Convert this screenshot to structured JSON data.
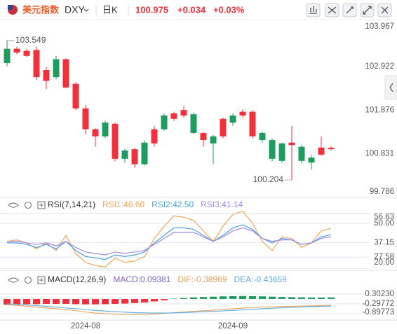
{
  "header": {
    "name": "美元指数",
    "symbol": "DXY",
    "period": "日K",
    "price": 100.975,
    "change": "+0.034",
    "change_pct": "+0.03%"
  },
  "chart_data": [
    {
      "type": "candlestick",
      "categories": [
        null,
        null,
        null,
        null,
        null,
        null,
        null,
        null,
        "2024-08",
        null,
        null,
        null,
        null,
        null,
        null,
        null,
        null,
        null,
        null,
        null,
        null,
        null,
        null,
        "2024-09",
        null,
        null,
        null,
        null,
        null,
        null,
        null,
        null,
        null,
        null
      ],
      "open": [
        103.35,
        103.26,
        103.18,
        102.67,
        102.58,
        103.1,
        102.42,
        101.92,
        101.42,
        101.25,
        101.58,
        100.71,
        100.91,
        100.58,
        101.1,
        101.08,
        101.75,
        101.67,
        101.75,
        101.78,
        101.16,
        101.25,
        101.25,
        101.75,
        101.75,
        101.25,
        101.33,
        101.16,
        101.08,
        101.04,
        101.0,
        100.74,
        100.81,
        100.94
      ],
      "close": [
        103.01,
        103.35,
        103.3,
        103.32,
        102.84,
        102.67,
        103.1,
        102.51,
        101.92,
        101.42,
        101.25,
        101.55,
        100.71,
        100.94,
        100.58,
        101.42,
        101.42,
        101.8,
        101.88,
        101.33,
        101.33,
        101.08,
        101.67,
        101.58,
        101.84,
        101.84,
        101.16,
        100.71,
        100.66,
        101.1,
        100.66,
        100.62,
        100.98,
        100.975
      ],
      "high": [
        103.549,
        103.4,
        103.35,
        103.4,
        102.92,
        103.18,
        103.12,
        102.55,
        102.0,
        101.45,
        101.62,
        101.58,
        100.95,
        100.97,
        101.15,
        101.5,
        101.8,
        101.84,
        101.98,
        101.82,
        101.35,
        101.28,
        101.7,
        101.8,
        101.9,
        101.88,
        101.36,
        101.2,
        101.1,
        101.5,
        101.05,
        100.8,
        101.25,
        101.02
      ],
      "low": [
        102.93,
        103.22,
        103.15,
        102.6,
        102.38,
        102.62,
        102.4,
        101.88,
        101.3,
        101.0,
        101.2,
        100.65,
        100.62,
        100.5,
        100.55,
        101.0,
        101.38,
        101.62,
        101.7,
        101.3,
        101.0,
        100.58,
        101.2,
        101.5,
        101.7,
        101.2,
        101.1,
        100.65,
        100.62,
        100.204,
        100.6,
        100.45,
        100.78,
        100.92
      ],
      "up_color": "#f0303a",
      "down_color": "#1e9b5e",
      "ylim": [
        99.75,
        104.05
      ],
      "yticks": [
        103.967,
        102.922,
        101.876,
        100.831,
        99.786
      ]
    },
    {
      "type": "line",
      "title": "RSI(7,14,21)",
      "series": [
        {
          "name": "RSI1:46.60",
          "color": "#f2a65a",
          "values": [
            38,
            39,
            37,
            33,
            37,
            32,
            42,
            30,
            24,
            22,
            21,
            27,
            24,
            25,
            28,
            40,
            48,
            55,
            54,
            52,
            45,
            38,
            48,
            56,
            58,
            50,
            38,
            32,
            41,
            40,
            34,
            37,
            45,
            46.6
          ]
        },
        {
          "name": "RSI2:42.50",
          "color": "#4aa3df",
          "values": [
            37,
            37,
            36,
            34,
            36,
            33,
            38,
            32,
            28,
            27,
            26,
            29,
            28,
            29,
            31,
            37,
            42,
            47,
            47,
            46,
            42,
            38,
            42,
            47,
            49,
            46,
            40,
            37,
            40,
            39,
            36,
            37,
            41,
            42.5
          ]
        },
        {
          "name": "RSI3:41.14",
          "color": "#a586e6",
          "values": [
            38,
            38,
            37,
            36,
            37,
            35,
            38,
            34,
            31,
            30,
            29,
            31,
            30,
            31,
            32,
            36,
            40,
            44,
            44,
            44,
            41,
            38,
            41,
            45,
            47,
            45,
            40,
            38,
            39,
            39,
            36,
            37,
            40,
            41.14
          ]
        }
      ],
      "ylim": [
        19.3,
        58.8
      ],
      "yticks": [
        56.63,
        {
          "value": 50,
          "label": "50.00"
        },
        37.15,
        27.58,
        {
          "value": 20,
          "label": "20.00"
        }
      ]
    },
    {
      "type": "macd",
      "title": "MACD(12,26,9)",
      "series": [
        {
          "name": "MACD:0.09381",
          "style": "bar",
          "positive_color": "#1e9b5e",
          "negative_color": "#f0303a",
          "color": "#7f64c8",
          "values": [
            -0.35,
            -0.33,
            -0.32,
            -0.32,
            -0.3,
            -0.3,
            -0.3,
            -0.32,
            -0.33,
            -0.33,
            -0.32,
            -0.3,
            -0.28,
            -0.25,
            -0.22,
            -0.15,
            -0.08,
            0.02,
            0.06,
            0.1,
            0.12,
            0.14,
            0.16,
            0.17,
            0.18,
            0.17,
            0.16,
            0.14,
            0.12,
            0.11,
            0.1,
            0.09,
            0.09,
            0.09381
          ]
        },
        {
          "name": "DIF:-0.38969",
          "style": "line",
          "color": "#f0a050",
          "values": [
            -0.35,
            -0.4,
            -0.45,
            -0.5,
            -0.55,
            -0.6,
            -0.65,
            -0.72,
            -0.8,
            -0.86,
            -0.9,
            -0.93,
            -0.95,
            -0.96,
            -0.95,
            -0.92,
            -0.88,
            -0.84,
            -0.8,
            -0.76,
            -0.72,
            -0.69,
            -0.64,
            -0.6,
            -0.56,
            -0.52,
            -0.5,
            -0.48,
            -0.46,
            -0.45,
            -0.44,
            -0.42,
            -0.4,
            -0.38969
          ]
        },
        {
          "name": "DEA:-0.43659",
          "style": "line",
          "color": "#5aaee0",
          "values": [
            -0.3,
            -0.33,
            -0.37,
            -0.41,
            -0.45,
            -0.5,
            -0.55,
            -0.6,
            -0.65,
            -0.7,
            -0.74,
            -0.78,
            -0.81,
            -0.84,
            -0.85,
            -0.86,
            -0.86,
            -0.85,
            -0.83,
            -0.81,
            -0.78,
            -0.76,
            -0.73,
            -0.7,
            -0.67,
            -0.63,
            -0.6,
            -0.57,
            -0.54,
            -0.52,
            -0.49,
            -0.47,
            -0.45,
            -0.43659
          ]
        }
      ],
      "ylim": [
        -1.245,
        1.5
      ],
      "yticks": [
        {
          "value": 0.3023,
          "label": "0.30230"
        },
        -0.29772,
        -0.89773
      ]
    }
  ]
}
